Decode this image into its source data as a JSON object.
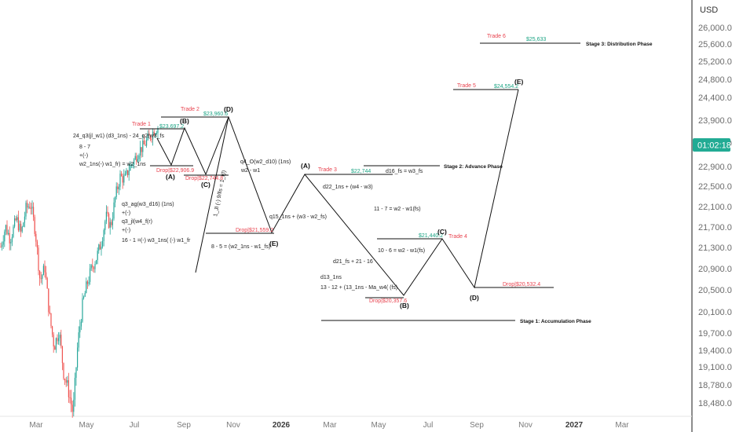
{
  "currency": "USD",
  "current_price_badge": "01:02:18",
  "colors": {
    "up": "#26a69a",
    "down": "#ef5350",
    "drawing_line": "#111111",
    "badge": "#22ab94",
    "drop_label": "#e8434f",
    "target_label": "#1aa383",
    "axis_text": "#6b6b6b"
  },
  "chart_data": {
    "type": "candlestick",
    "y_scale": "log",
    "ylim": [
      18300,
      26400
    ],
    "y_ticks": [
      "26,000.0",
      "25,600.0",
      "25,200.0",
      "24,800.0",
      "24,400.0",
      "23,900.0",
      "23,400.0",
      "22,900.0",
      "22,500.0",
      "22,100.0",
      "21,700.0",
      "21,300.0",
      "20,900.0",
      "20,500.0",
      "20,100.0",
      "19,700.0",
      "19,400.0",
      "19,100.0",
      "18,780.0",
      "18,480.0"
    ],
    "x_ticks": [
      {
        "label": "Mar",
        "bold": false
      },
      {
        "label": "May",
        "bold": false
      },
      {
        "label": "Jul",
        "bold": false
      },
      {
        "label": "Sep",
        "bold": false
      },
      {
        "label": "Nov",
        "bold": false
      },
      {
        "label": "2026",
        "bold": true
      },
      {
        "label": "Mar",
        "bold": false
      },
      {
        "label": "May",
        "bold": false
      },
      {
        "label": "Jul",
        "bold": false
      },
      {
        "label": "Sep",
        "bold": false
      },
      {
        "label": "Nov",
        "bold": false
      },
      {
        "label": "2027",
        "bold": true
      },
      {
        "label": "Mar",
        "bold": false
      }
    ],
    "price_history": {
      "period": "2025-02 to 2025-07",
      "path": [
        [
          0,
          21300
        ],
        [
          6,
          21700
        ],
        [
          12,
          21450
        ],
        [
          20,
          21850
        ],
        [
          26,
          21550
        ],
        [
          32,
          22050
        ],
        [
          38,
          22150
        ],
        [
          44,
          21600
        ],
        [
          50,
          20650
        ],
        [
          56,
          20900
        ],
        [
          62,
          20000
        ],
        [
          68,
          19450
        ],
        [
          74,
          19750
        ],
        [
          80,
          19000
        ],
        [
          86,
          18700
        ],
        [
          92,
          18300
        ],
        [
          98,
          19500
        ],
        [
          104,
          20200
        ],
        [
          110,
          20600
        ],
        [
          116,
          20900
        ],
        [
          122,
          21100
        ],
        [
          128,
          21400
        ],
        [
          134,
          21900
        ],
        [
          140,
          21700
        ],
        [
          146,
          22300
        ],
        [
          152,
          22700
        ],
        [
          158,
          22650
        ],
        [
          164,
          22900
        ],
        [
          170,
          23050
        ],
        [
          176,
          23250
        ],
        [
          182,
          23350
        ],
        [
          188,
          23500
        ],
        [
          194,
          23650
        ],
        [
          200,
          23750
        ]
      ]
    },
    "waves": [
      {
        "name": "projection-1",
        "points": [
          [
            "Jun",
            23600
          ],
          [
            "Jul",
            23320
          ],
          [
            "Aug",
            22900
          ],
          [
            "Sep",
            23700
          ],
          [
            "Sep",
            22750
          ],
          [
            "Oct",
            23960
          ],
          [
            "Nov",
            21560
          ],
          [
            "Dec",
            22750
          ],
          [
            "May",
            20360
          ],
          [
            "Jun",
            21440
          ],
          [
            "Sep",
            20530
          ],
          [
            "Nov",
            24550
          ]
        ]
      },
      {
        "name": "projection-2",
        "points": [
          [
            "Aug",
            20800
          ],
          [
            "Oct",
            23960
          ]
        ]
      }
    ],
    "wave_labels": [
      "(B)",
      "(A)",
      "(C)",
      "(D)",
      "(E)",
      "(A)",
      "(B)",
      "(C)",
      "(D)",
      "(E)"
    ],
    "levels": [
      {
        "price": "$23,697.2",
        "trade": "Trade 1",
        "kind": "target"
      },
      {
        "price": "Drop|$22,906.9",
        "kind": "drop"
      },
      {
        "price": "$23,960.6",
        "trade": "Trade 2",
        "kind": "target"
      },
      {
        "price": "Drop|$22,744.8",
        "kind": "drop"
      },
      {
        "price": "Drop|$21,559.2",
        "kind": "drop"
      },
      {
        "price": "$22,744",
        "trade": "Trade 3",
        "kind": "target"
      },
      {
        "price": "Drop|$20,357.6",
        "kind": "drop"
      },
      {
        "price": "$21,440.2",
        "trade": "Trade 4",
        "kind": "target"
      },
      {
        "price": "Drop|$20,532.4",
        "kind": "drop"
      },
      {
        "price": "$24,554.2",
        "trade": "Trade 5",
        "kind": "target"
      },
      {
        "price": "$25,633",
        "trade": "Trade 6",
        "kind": "target"
      }
    ],
    "phases": [
      "Stage 1: Accumulation Phase",
      "Stage 2: Advance Phase",
      "Stage 3: Distribution Phase"
    ],
    "annotations": [
      "24_q3(jl_w1) (d3_1ns) - 24_q2(w3_fs",
      "8 - 7",
      "+(-)",
      "w2_1ns(-) w1_fr) = w2_1ns",
      "q3_ag(w3_d16) (1ns)",
      "+(-)",
      "q3_jl(w4_f(r)",
      "+(-)",
      "16 - 1 =(-) w3_1ns( (-) w1_fr",
      "q4_O(w2_d10) (1ns)",
      "w2 - w1",
      "1_Jl (-) 9/lls = 1_l(l)",
      "8 - 5 = (w2_1ns - w1_fs)",
      "q15_1ns + (w3 - w2_fs)",
      "d22_1ns + (w4 - w3)",
      "11 - 7 = w2 - w1(fs)",
      "10 - 6 = w2 - w1(fs)",
      "d21_fs + 21 - 16",
      "d13_1ns",
      "13 - 12 + (13_1ns - Ma_w4( (fs)",
      "d16_fs = w3_fs"
    ]
  }
}
